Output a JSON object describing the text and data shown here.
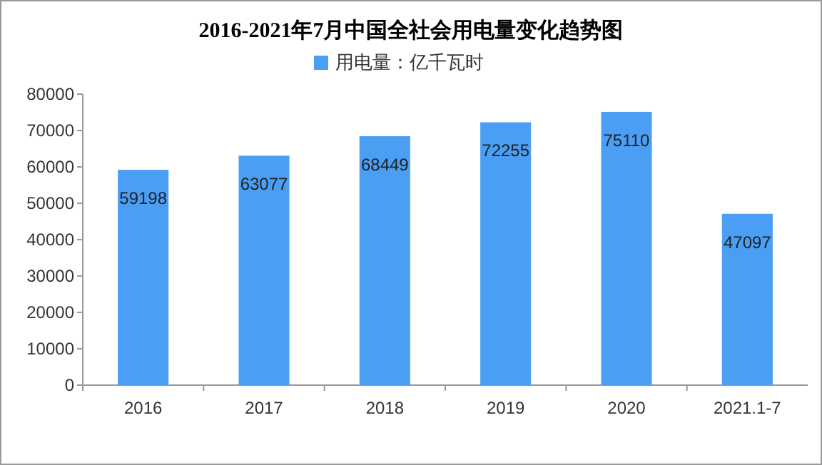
{
  "chart_data": {
    "type": "bar",
    "title": "2016-2021年7月中国全社会用电量变化趋势图",
    "categories": [
      "2016",
      "2017",
      "2018",
      "2019",
      "2020",
      "2021.1-7"
    ],
    "series": [
      {
        "name": "用电量：亿千瓦时",
        "color": "#4a9ff5",
        "values": [
          59198,
          63077,
          68449,
          72255,
          75110,
          47097
        ]
      }
    ],
    "ylim": [
      0,
      80000
    ],
    "yticks": [
      0,
      10000,
      20000,
      30000,
      40000,
      50000,
      60000,
      70000,
      80000
    ],
    "grid": false,
    "legend": "top",
    "data_labels": true
  }
}
